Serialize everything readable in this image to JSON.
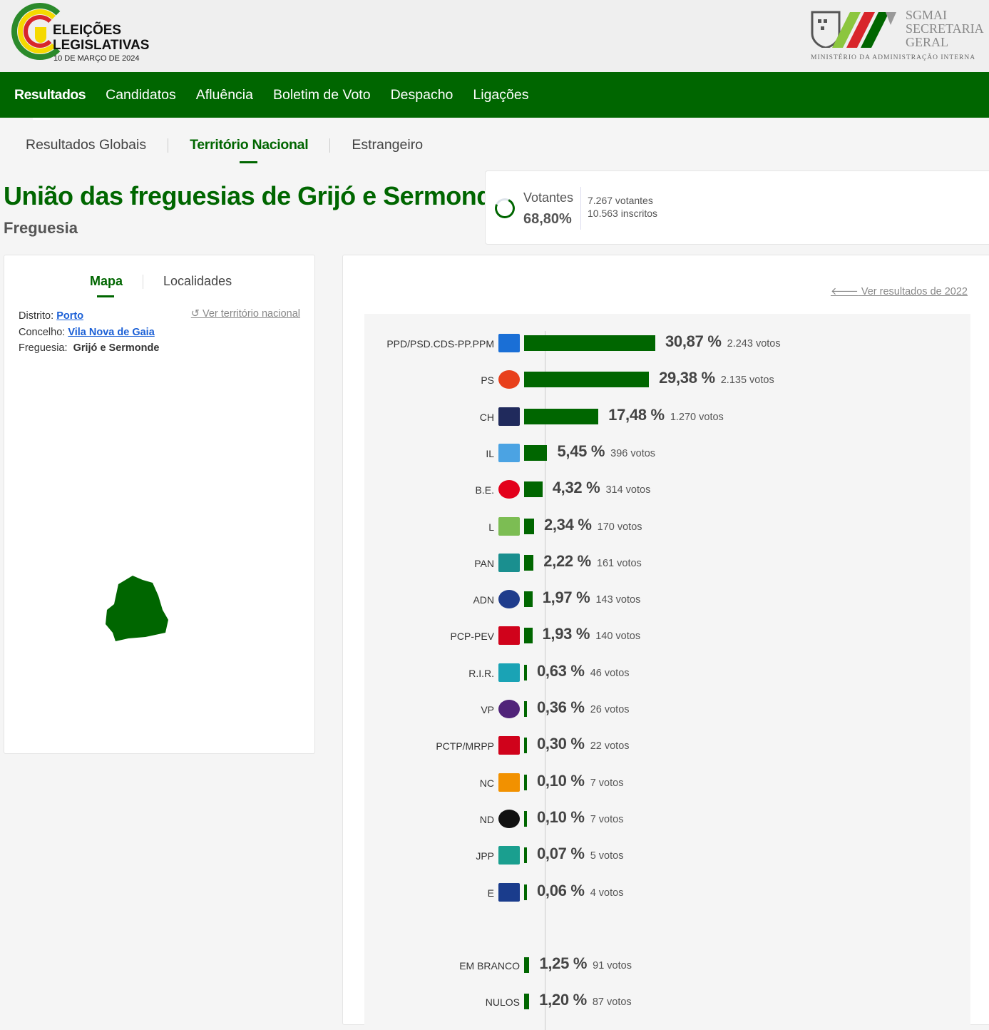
{
  "header": {
    "logo_line1": "ELEIÇÕES",
    "logo_line2": "LEGISLATIVAS",
    "logo_date": "10 DE MARÇO DE 2024",
    "sgmai_lines": [
      "SGMAI",
      "SECRETARIA",
      "GERAL"
    ],
    "ministry": "MINISTÉRIO DA ADMINISTRAÇÃO INTERNA"
  },
  "nav": [
    "Resultados",
    "Candidatos",
    "Afluência",
    "Boletim de Voto",
    "Despacho",
    "Ligações"
  ],
  "subnav": [
    "Resultados Globais",
    "Território Nacional",
    "Estrangeiro"
  ],
  "page": {
    "title": "União das freguesias de Grijó e Sermonde",
    "subtitle": "Freguesia"
  },
  "turnout": {
    "label": "Votantes",
    "percent": "68,80%",
    "voters": "7.267 votantes",
    "registered": "10.563 inscritos",
    "value": 68.8
  },
  "left": {
    "tabs": [
      "Mapa",
      "Localidades"
    ],
    "district_label": "Distrito:",
    "district": "Porto",
    "council_label": "Concelho:",
    "council": "Vila Nova de Gaia",
    "parish_label": "Freguesia:",
    "parish": "Grijó e Sermonde",
    "link": "Ver território nacional"
  },
  "results_link": "Ver resultados de 2022",
  "accent": "#006600",
  "chart_data": {
    "type": "bar",
    "orientation": "horizontal",
    "unit": "%",
    "rows": [
      {
        "party": "PPD/PSD.CDS-PP.PPM",
        "pct": 30.87,
        "pct_label": "30,87 %",
        "votes": "2.243 votos",
        "icon": "ad-logo",
        "color": "#1a6fd6"
      },
      {
        "party": "PS",
        "pct": 29.38,
        "pct_label": "29,38 %",
        "votes": "2.135 votos",
        "icon": "ps-fist-logo",
        "color": "#e8401c"
      },
      {
        "party": "CH",
        "pct": 17.48,
        "pct_label": "17,48 %",
        "votes": "1.270 votos",
        "icon": "chega-logo",
        "color": "#202a5c"
      },
      {
        "party": "IL",
        "pct": 5.45,
        "pct_label": "5,45 %",
        "votes": "396 votos",
        "icon": "il-logo",
        "color": "#4ba3e3"
      },
      {
        "party": "B.E.",
        "pct": 4.32,
        "pct_label": "4,32 %",
        "votes": "314 votos",
        "icon": "be-star-logo",
        "color": "#e3001b"
      },
      {
        "party": "L",
        "pct": 2.34,
        "pct_label": "2,34 %",
        "votes": "170 votos",
        "icon": "livre-poppy-logo",
        "color": "#7cbd53"
      },
      {
        "party": "PAN",
        "pct": 2.22,
        "pct_label": "2,22 %",
        "votes": "161 votos",
        "icon": "pan-tree-logo",
        "color": "#1a8f8f"
      },
      {
        "party": "ADN",
        "pct": 1.97,
        "pct_label": "1,97 %",
        "votes": "143 votos",
        "icon": "adn-logo",
        "color": "#1f3c8c"
      },
      {
        "party": "PCP-PEV",
        "pct": 1.93,
        "pct_label": "1,93 %",
        "votes": "140 votos",
        "icon": "cdu-logo",
        "color": "#d0021b"
      },
      {
        "party": "R.I.R.",
        "pct": 0.63,
        "pct_label": "0,63 %",
        "votes": "46 votos",
        "icon": "rir-logo",
        "color": "#1aa3b5"
      },
      {
        "party": "VP",
        "pct": 0.36,
        "pct_label": "0,36 %",
        "votes": "26 votos",
        "icon": "volt-logo",
        "color": "#502379"
      },
      {
        "party": "PCTP/MRPP",
        "pct": 0.3,
        "pct_label": "0,30 %",
        "votes": "22 votos",
        "icon": "pctp-logo",
        "color": "#d0021b"
      },
      {
        "party": "NC",
        "pct": 0.1,
        "pct_label": "0,10 %",
        "votes": "7 votos",
        "icon": "nos-cidadaos-logo",
        "color": "#f29100"
      },
      {
        "party": "ND",
        "pct": 0.1,
        "pct_label": "0,10 %",
        "votes": "7 votos",
        "icon": "nova-direita-logo",
        "color": "#111111"
      },
      {
        "party": "JPP",
        "pct": 0.07,
        "pct_label": "0,07 %",
        "votes": "5 votos",
        "icon": "jpp-logo",
        "color": "#1a9f8f"
      },
      {
        "party": "E",
        "pct": 0.06,
        "pct_label": "0,06 %",
        "votes": "4 votos",
        "icon": "ergue-te-logo",
        "color": "#1a3c8c"
      }
    ],
    "extra": [
      {
        "party": "EM BRANCO",
        "pct": 1.25,
        "pct_label": "1,25 %",
        "votes": "91 votos"
      },
      {
        "party": "NULOS",
        "pct": 1.2,
        "pct_label": "1,20 %",
        "votes": "87 votos"
      }
    ]
  }
}
